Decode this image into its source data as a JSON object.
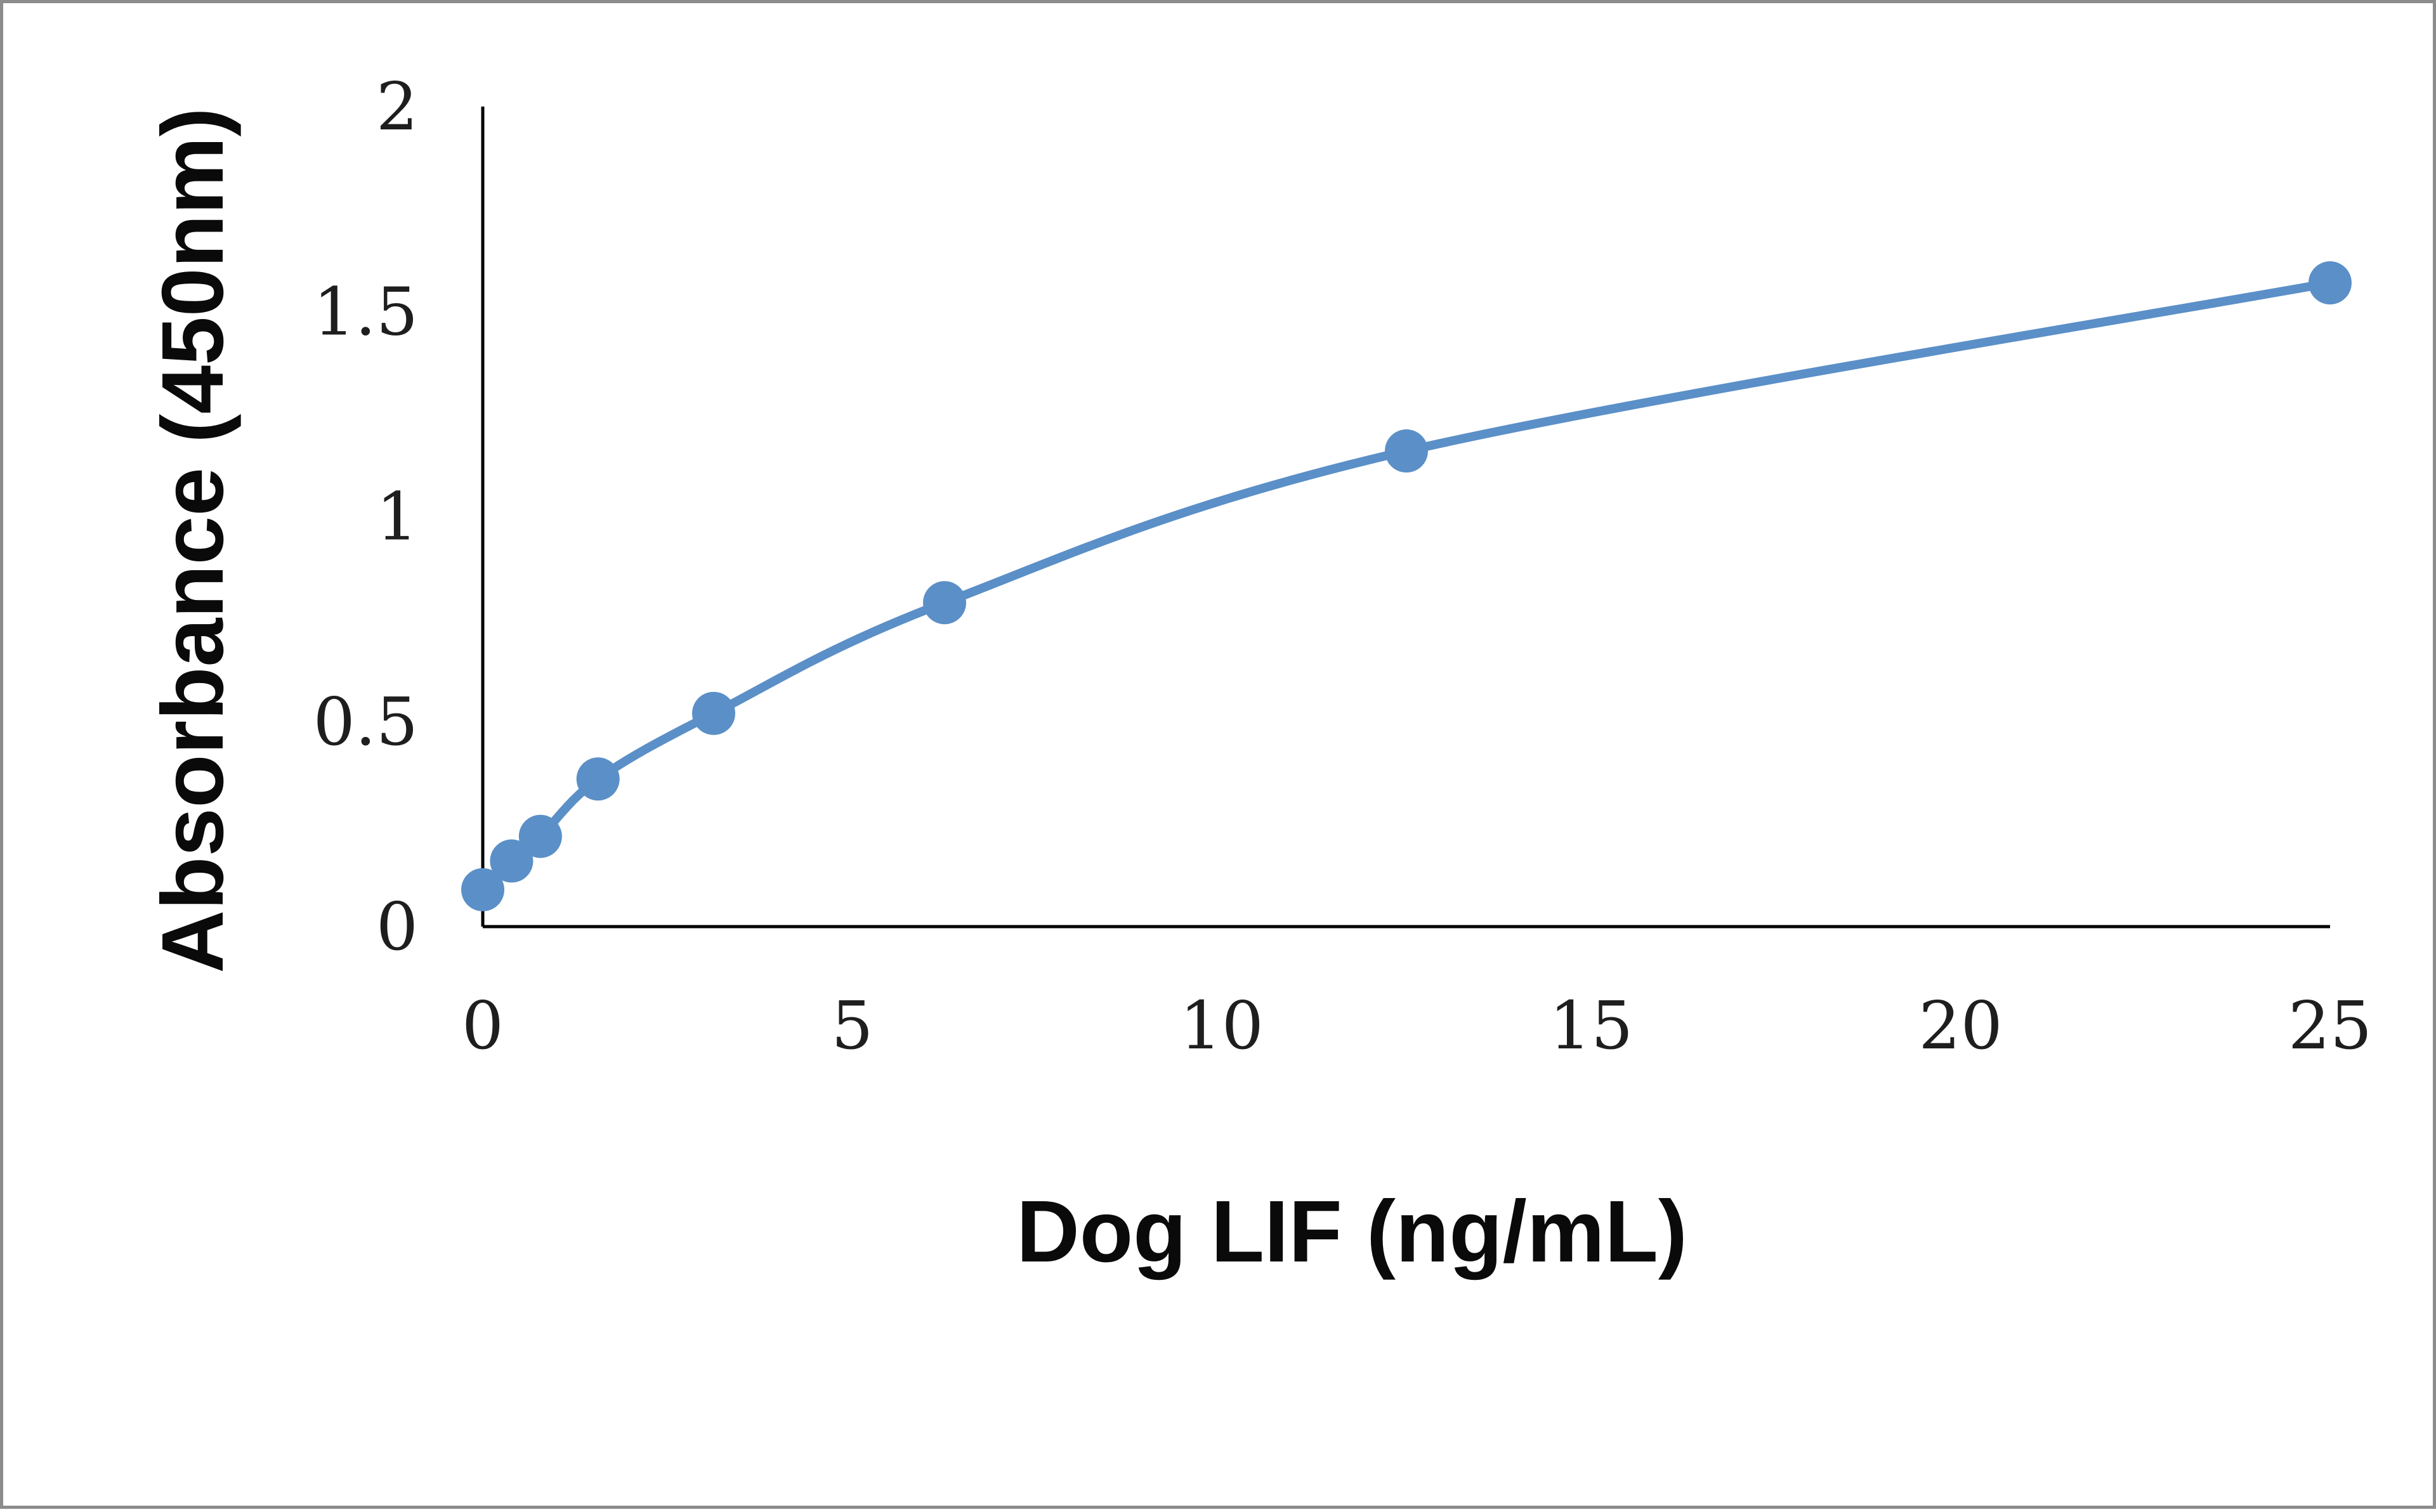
{
  "chart_data": {
    "type": "line",
    "title": "",
    "xlabel": "Dog LIF (ng/mL)",
    "ylabel": "Absorbance (450nm)",
    "xlim": [
      0,
      25
    ],
    "ylim": [
      0,
      2
    ],
    "x_ticks": [
      "0",
      "5",
      "10",
      "15",
      "20",
      "25"
    ],
    "y_ticks": [
      "0",
      "0.5",
      "1",
      "1.5",
      "2"
    ],
    "grid": false,
    "legend": "none",
    "smooth": true,
    "color": "#5b8fc7",
    "series": [
      {
        "x": [
          0,
          0.39,
          0.78,
          1.56,
          3.125,
          6.25,
          12.5,
          25
        ],
        "y": [
          0.09,
          0.16,
          0.22,
          0.36,
          0.52,
          0.79,
          1.16,
          1.57
        ]
      }
    ]
  }
}
